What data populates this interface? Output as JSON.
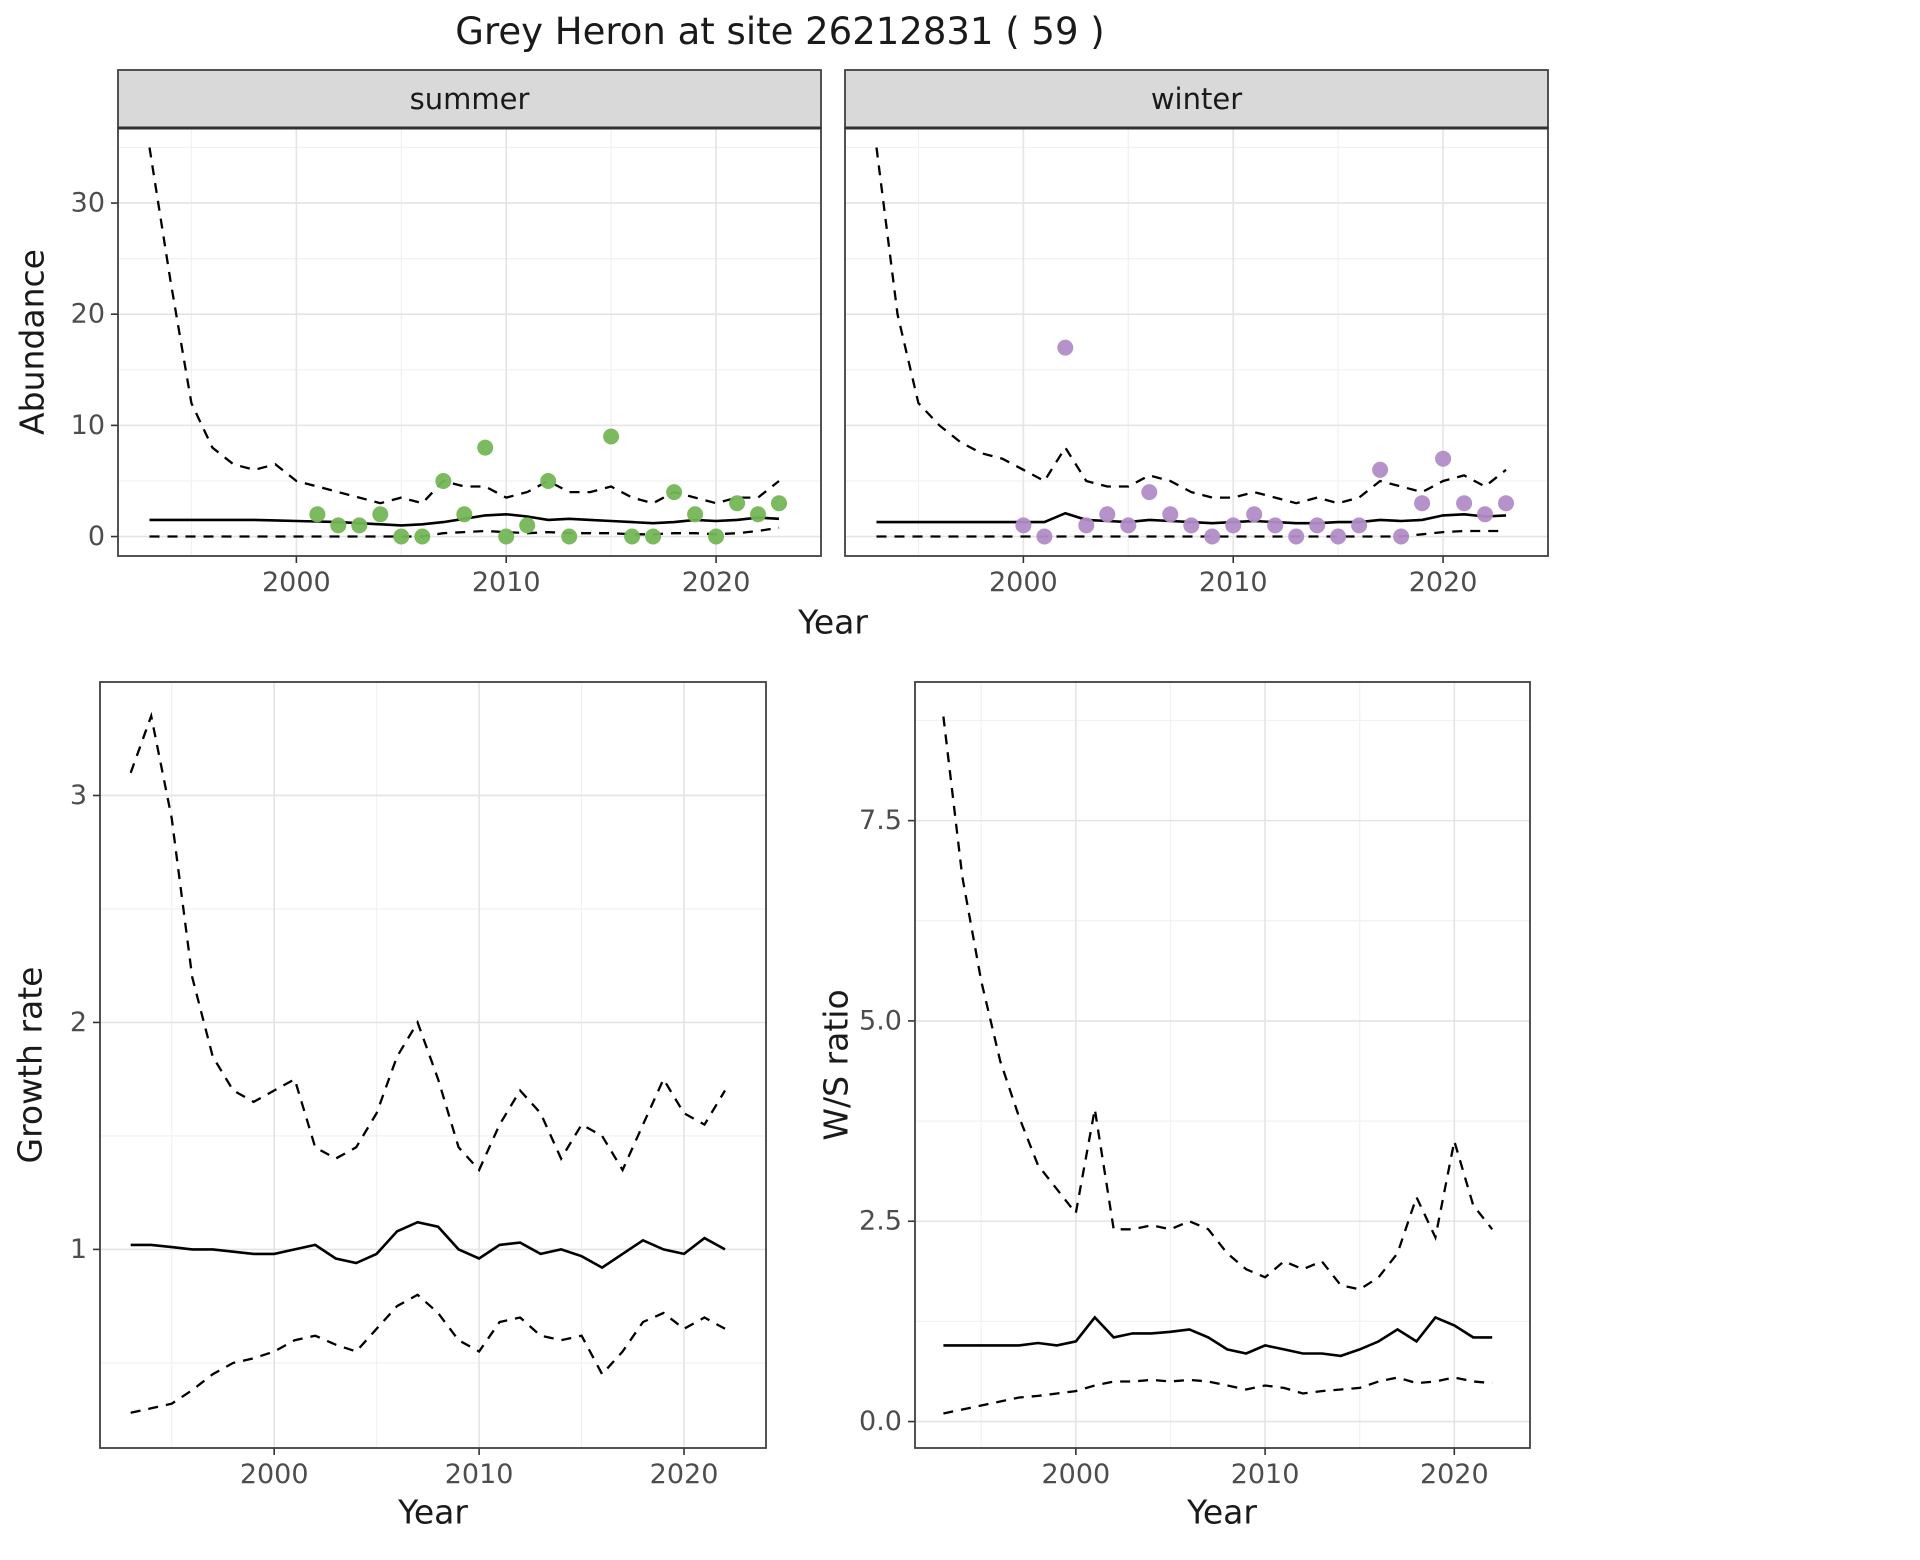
{
  "title": "Grey Heron at site 26212831 ( 59 )",
  "colors": {
    "summer_points": "#74b656",
    "winter_points": "#b18cc6",
    "strip_background": "#d9d9d9",
    "panel_border": "#404040",
    "grid_major": "#e4e4e4",
    "grid_minor": "#f1f1f1",
    "line": "#000000",
    "tick_text": "#4d4d4d",
    "title_text": "#1a1a1a"
  },
  "chart_data": [
    {
      "type": "line+scatter",
      "name": "abundance",
      "title": "",
      "xlabel": "Year",
      "ylabel": "Abundance",
      "grid": true,
      "legend_position": "none",
      "xlim": [
        1991.5,
        2025
      ],
      "ylim": [
        -1.75,
        36.75
      ],
      "xticks": [
        2000,
        2010,
        2020
      ],
      "xtick_labels": [
        "2000",
        "2010",
        "2020"
      ],
      "yticks": [
        0,
        10,
        20,
        30
      ],
      "ytick_labels": [
        "0",
        "10",
        "20",
        "30"
      ],
      "years": [
        1993,
        1994,
        1995,
        1996,
        1997,
        1998,
        1999,
        2000,
        2001,
        2002,
        2003,
        2004,
        2005,
        2006,
        2007,
        2008,
        2009,
        2010,
        2011,
        2012,
        2013,
        2014,
        2015,
        2016,
        2017,
        2018,
        2019,
        2020,
        2021,
        2022,
        2023
      ],
      "facets": [
        {
          "label": "summer",
          "point_color_key": "summer_points",
          "fit": [
            1.5,
            1.5,
            1.5,
            1.5,
            1.5,
            1.5,
            1.45,
            1.4,
            1.35,
            1.3,
            1.2,
            1.1,
            1.0,
            1.1,
            1.3,
            1.6,
            1.9,
            2.0,
            1.8,
            1.5,
            1.6,
            1.5,
            1.4,
            1.3,
            1.2,
            1.3,
            1.5,
            1.4,
            1.5,
            1.7,
            1.6
          ],
          "upper_ci": [
            35,
            23,
            12,
            8,
            6.5,
            6,
            6.5,
            5,
            4.5,
            4,
            3.5,
            3,
            3.5,
            3,
            5,
            4.5,
            4.5,
            3.5,
            4,
            5,
            4,
            4,
            4.5,
            3.5,
            3,
            4,
            3.5,
            3,
            3.5,
            3.5,
            5
          ],
          "lower_ci": [
            0,
            0,
            0,
            0,
            0,
            0,
            0,
            0,
            0,
            0,
            0,
            0,
            0,
            0,
            0.3,
            0.4,
            0.5,
            0.4,
            0.3,
            0.4,
            0.3,
            0.3,
            0.3,
            0.2,
            0.2,
            0.3,
            0.3,
            0.2,
            0.3,
            0.5,
            0.8
          ],
          "observations": [
            [
              2001,
              2
            ],
            [
              2002,
              1
            ],
            [
              2003,
              1
            ],
            [
              2004,
              2
            ],
            [
              2005,
              0
            ],
            [
              2006,
              0
            ],
            [
              2007,
              5
            ],
            [
              2008,
              2
            ],
            [
              2009,
              8
            ],
            [
              2010,
              0
            ],
            [
              2011,
              1
            ],
            [
              2012,
              5
            ],
            [
              2013,
              0
            ],
            [
              2015,
              9
            ],
            [
              2016,
              0
            ],
            [
              2017,
              0
            ],
            [
              2018,
              4
            ],
            [
              2019,
              2
            ],
            [
              2020,
              0
            ],
            [
              2021,
              3
            ],
            [
              2022,
              2
            ],
            [
              2023,
              3
            ]
          ]
        },
        {
          "label": "winter",
          "point_color_key": "winter_points",
          "fit": [
            1.3,
            1.3,
            1.3,
            1.3,
            1.3,
            1.3,
            1.3,
            1.3,
            1.3,
            2.1,
            1.5,
            1.4,
            1.3,
            1.5,
            1.4,
            1.3,
            1.2,
            1.3,
            1.4,
            1.3,
            1.2,
            1.2,
            1.3,
            1.3,
            1.5,
            1.4,
            1.5,
            1.9,
            2.0,
            1.8,
            1.9
          ],
          "upper_ci": [
            35,
            20,
            12,
            10,
            8.5,
            7.5,
            7,
            6,
            5,
            8,
            5,
            4.5,
            4.5,
            5.5,
            5,
            4,
            3.5,
            3.5,
            4,
            3.5,
            3,
            3.5,
            3,
            3.5,
            5,
            4.5,
            4,
            5,
            5.5,
            4.5,
            6
          ],
          "lower_ci": [
            0,
            0,
            0,
            0,
            0,
            0,
            0,
            0,
            0,
            0,
            0,
            0,
            0,
            0,
            0,
            0,
            0,
            0,
            0,
            0,
            0,
            0,
            0,
            0,
            0,
            0,
            0.2,
            0.4,
            0.5,
            0.5,
            0.5
          ],
          "observations": [
            [
              2000,
              1
            ],
            [
              2001,
              0
            ],
            [
              2002,
              17
            ],
            [
              2003,
              1
            ],
            [
              2004,
              2
            ],
            [
              2005,
              1
            ],
            [
              2006,
              4
            ],
            [
              2007,
              2
            ],
            [
              2008,
              1
            ],
            [
              2009,
              0
            ],
            [
              2010,
              1
            ],
            [
              2011,
              2
            ],
            [
              2012,
              1
            ],
            [
              2013,
              0
            ],
            [
              2014,
              1
            ],
            [
              2015,
              0
            ],
            [
              2016,
              1
            ],
            [
              2017,
              6
            ],
            [
              2018,
              0
            ],
            [
              2019,
              3
            ],
            [
              2020,
              7
            ],
            [
              2021,
              3
            ],
            [
              2022,
              2
            ],
            [
              2023,
              3
            ]
          ]
        }
      ]
    },
    {
      "type": "line",
      "name": "growth_rate",
      "title": "",
      "xlabel": "Year",
      "ylabel": "Growth rate",
      "grid": true,
      "legend_position": "none",
      "xlim": [
        1991.5,
        2024
      ],
      "ylim": [
        0.125,
        3.5
      ],
      "xticks": [
        2000,
        2010,
        2020
      ],
      "xtick_labels": [
        "2000",
        "2010",
        "2020"
      ],
      "yticks": [
        1,
        2,
        3
      ],
      "ytick_labels": [
        "1",
        "2",
        "3"
      ],
      "years": [
        1993,
        1994,
        1995,
        1996,
        1997,
        1998,
        1999,
        2000,
        2001,
        2002,
        2003,
        2004,
        2005,
        2006,
        2007,
        2008,
        2009,
        2010,
        2011,
        2012,
        2013,
        2014,
        2015,
        2016,
        2017,
        2018,
        2019,
        2020,
        2021,
        2022
      ],
      "fit": [
        1.02,
        1.02,
        1.01,
        1.0,
        1.0,
        0.99,
        0.98,
        0.98,
        1.0,
        1.02,
        0.96,
        0.94,
        0.98,
        1.08,
        1.12,
        1.1,
        1.0,
        0.96,
        1.02,
        1.03,
        0.98,
        1.0,
        0.97,
        0.92,
        0.98,
        1.04,
        1.0,
        0.98,
        1.05,
        1.0
      ],
      "upper_ci": [
        3.1,
        3.35,
        2.9,
        2.2,
        1.85,
        1.7,
        1.65,
        1.7,
        1.75,
        1.45,
        1.4,
        1.45,
        1.6,
        1.85,
        2.0,
        1.75,
        1.45,
        1.35,
        1.55,
        1.7,
        1.6,
        1.4,
        1.55,
        1.5,
        1.35,
        1.55,
        1.75,
        1.6,
        1.55,
        1.7
      ],
      "lower_ci": [
        0.28,
        0.3,
        0.32,
        0.38,
        0.45,
        0.5,
        0.52,
        0.55,
        0.6,
        0.62,
        0.58,
        0.55,
        0.65,
        0.75,
        0.8,
        0.72,
        0.6,
        0.55,
        0.68,
        0.7,
        0.62,
        0.6,
        0.62,
        0.45,
        0.55,
        0.68,
        0.72,
        0.65,
        0.7,
        0.65
      ]
    },
    {
      "type": "line",
      "name": "ws_ratio",
      "title": "",
      "xlabel": "Year",
      "ylabel": "W/S ratio",
      "grid": true,
      "legend_position": "none",
      "xlim": [
        1991.5,
        2024
      ],
      "ylim": [
        -0.33,
        9.23
      ],
      "xticks": [
        2000,
        2010,
        2020
      ],
      "xtick_labels": [
        "2000",
        "2010",
        "2020"
      ],
      "yticks": [
        0,
        2.5,
        5,
        7.5
      ],
      "ytick_labels": [
        "0.0",
        "2.5",
        "5.0",
        "7.5"
      ],
      "years": [
        1993,
        1994,
        1995,
        1996,
        1997,
        1998,
        1999,
        2000,
        2001,
        2002,
        2003,
        2004,
        2005,
        2006,
        2007,
        2008,
        2009,
        2010,
        2011,
        2012,
        2013,
        2014,
        2015,
        2016,
        2017,
        2018,
        2019,
        2020,
        2021,
        2022
      ],
      "fit": [
        0.95,
        0.95,
        0.95,
        0.95,
        0.95,
        0.98,
        0.95,
        1.0,
        1.3,
        1.05,
        1.1,
        1.1,
        1.12,
        1.15,
        1.05,
        0.9,
        0.85,
        0.95,
        0.9,
        0.85,
        0.85,
        0.82,
        0.9,
        1.0,
        1.15,
        1.0,
        1.3,
        1.2,
        1.05,
        1.05
      ],
      "upper_ci": [
        8.8,
        6.8,
        5.5,
        4.5,
        3.8,
        3.2,
        2.9,
        2.6,
        3.9,
        2.4,
        2.4,
        2.45,
        2.4,
        2.5,
        2.4,
        2.1,
        1.9,
        1.8,
        2.0,
        1.9,
        2.0,
        1.7,
        1.65,
        1.8,
        2.1,
        2.8,
        2.3,
        3.5,
        2.7,
        2.4
      ],
      "lower_ci": [
        0.1,
        0.15,
        0.2,
        0.25,
        0.3,
        0.32,
        0.35,
        0.38,
        0.45,
        0.5,
        0.5,
        0.52,
        0.5,
        0.52,
        0.5,
        0.45,
        0.4,
        0.45,
        0.42,
        0.35,
        0.38,
        0.4,
        0.42,
        0.5,
        0.55,
        0.48,
        0.5,
        0.55,
        0.5,
        0.48
      ]
    }
  ]
}
